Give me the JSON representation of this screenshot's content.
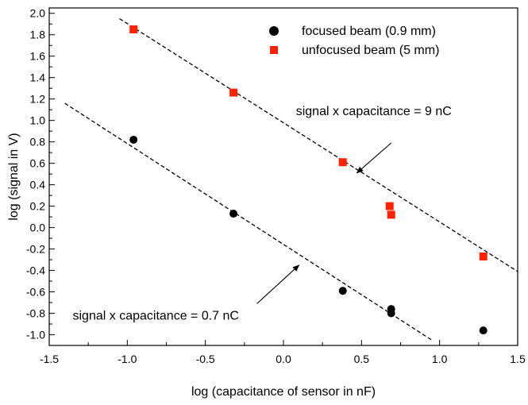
{
  "chart_data": {
    "type": "scatter",
    "xlabel": "log (capacitance of sensor in nF)",
    "ylabel": "log (signal in V)",
    "xlim": [
      -1.5,
      1.5
    ],
    "ylim": [
      -1.1,
      2.05
    ],
    "x_ticks": [
      -1.5,
      -1.0,
      -0.5,
      0.0,
      0.5,
      1.0,
      1.5
    ],
    "x_tick_labels": [
      "-1.5",
      "-1.0",
      "-0.5",
      "0.0",
      "0.5",
      "1.0",
      "1.5"
    ],
    "y_ticks": [
      -1.0,
      -0.8,
      -0.6,
      -0.4,
      -0.2,
      0.0,
      0.2,
      0.4,
      0.6,
      0.8,
      1.0,
      1.2,
      1.4,
      1.6,
      1.8,
      2.0
    ],
    "y_tick_labels": [
      "-1.0",
      "-0.8",
      "-0.6",
      "-0.4",
      "-0.2",
      "0.0",
      "0.2",
      "0.4",
      "0.6",
      "0.8",
      "1.0",
      "1.2",
      "1.4",
      "1.6",
      "1.8",
      "2.0"
    ],
    "grid": false,
    "legend_position": "top-right",
    "series": [
      {
        "name": "focused beam  (0.9 mm)",
        "marker": "circle",
        "color": "#000000",
        "points": [
          {
            "x": -0.96,
            "y": 0.82
          },
          {
            "x": -0.32,
            "y": 0.13
          },
          {
            "x": 0.38,
            "y": -0.59
          },
          {
            "x": 0.69,
            "y": -0.76
          },
          {
            "x": 0.69,
            "y": -0.8
          },
          {
            "x": 1.28,
            "y": -0.96
          }
        ]
      },
      {
        "name": "unfocused beam  (5 mm)",
        "marker": "square",
        "color": "#ff2200",
        "points": [
          {
            "x": -0.96,
            "y": 1.85
          },
          {
            "x": -0.32,
            "y": 1.26
          },
          {
            "x": 0.38,
            "y": 0.61
          },
          {
            "x": 0.68,
            "y": 0.2
          },
          {
            "x": 0.69,
            "y": 0.12
          },
          {
            "x": 1.28,
            "y": -0.27
          }
        ]
      }
    ],
    "fit_lines": [
      {
        "x": [
          -1.05,
          1.5
        ],
        "y": [
          1.95,
          -0.41
        ],
        "style": "dashed",
        "color": "#000000"
      },
      {
        "x": [
          -1.4,
          0.95
        ],
        "y": [
          1.16,
          -1.05
        ],
        "style": "dashed",
        "color": "#000000"
      }
    ],
    "annotations": [
      {
        "text": "signal x capacitance = 9 nC",
        "label_x": 0.08,
        "label_y": 1.05,
        "anchor": "start",
        "arrow_from": [
          0.69,
          0.79
        ],
        "arrow_to": [
          0.47,
          0.51
        ]
      },
      {
        "text": "signal x capacitance = 0.7 nC",
        "label_x": -1.35,
        "label_y": -0.86,
        "anchor": "start",
        "arrow_from": [
          -0.17,
          -0.71
        ],
        "arrow_to": [
          0.1,
          -0.35
        ]
      }
    ]
  }
}
